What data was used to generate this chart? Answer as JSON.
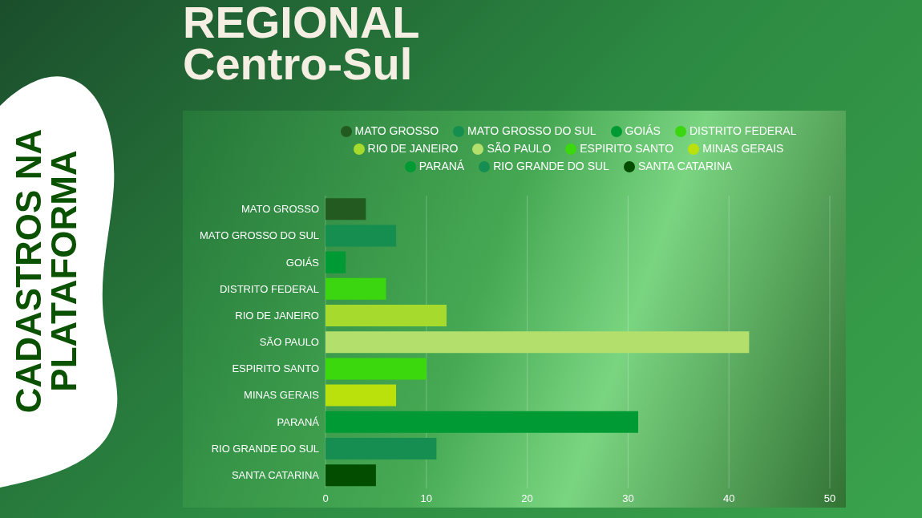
{
  "chart_data": {
    "type": "bar",
    "orientation": "horizontal",
    "stacked": true,
    "title": "REGIONAL\nCentro-Sul",
    "subtitle": "CADASTROS NA PLATAFORMA",
    "categories": [
      "MATO GROSSO",
      "MATO GROSSO DO SUL",
      "GOIÁS",
      "DISTRITO FEDERAL",
      "RIO DE JANEIRO",
      "SÃO PAULO",
      "ESPIRITO SANTO",
      "MINAS GERAIS",
      "PARANÁ",
      "RIO GRANDE DO SUL",
      "SANTA CATARINA"
    ],
    "series": [
      {
        "name": "MATO GROSSO",
        "color": "#225a20",
        "values": [
          4,
          null,
          null,
          null,
          null,
          null,
          null,
          null,
          null,
          null,
          null
        ]
      },
      {
        "name": "MATO GROSSO DO SUL",
        "color": "#168e50",
        "values": [
          null,
          7,
          null,
          null,
          null,
          null,
          null,
          null,
          null,
          null,
          null
        ]
      },
      {
        "name": "GOIÁS",
        "color": "#009a34",
        "values": [
          null,
          null,
          2,
          null,
          null,
          null,
          null,
          null,
          null,
          null,
          null
        ]
      },
      {
        "name": "DISTRITO FEDERAL",
        "color": "#3bd60f",
        "values": [
          null,
          null,
          null,
          6,
          null,
          null,
          null,
          null,
          null,
          null,
          null
        ]
      },
      {
        "name": "RIO DE JANEIRO",
        "color": "#a6da2d",
        "values": [
          null,
          null,
          null,
          null,
          12,
          null,
          null,
          null,
          null,
          null,
          null
        ]
      },
      {
        "name": "SÃO PAULO",
        "color": "#b3df6c",
        "values": [
          null,
          null,
          null,
          null,
          null,
          42,
          null,
          null,
          null,
          null,
          null
        ]
      },
      {
        "name": "ESPIRITO SANTO",
        "color": "#3ad80c",
        "values": [
          null,
          null,
          null,
          null,
          null,
          null,
          10,
          null,
          null,
          null,
          null
        ]
      },
      {
        "name": "MINAS GERAIS",
        "color": "#bbe10c",
        "values": [
          null,
          null,
          null,
          null,
          null,
          null,
          null,
          7,
          null,
          null,
          null
        ]
      },
      {
        "name": "PARANÁ",
        "color": "#009a35",
        "values": [
          null,
          null,
          null,
          null,
          null,
          null,
          null,
          null,
          31,
          null,
          null
        ]
      },
      {
        "name": "RIO GRANDE DO SUL",
        "color": "#168e51",
        "values": [
          null,
          null,
          null,
          null,
          null,
          null,
          null,
          null,
          null,
          11,
          null
        ]
      },
      {
        "name": "SANTA CATARINA",
        "color": "#024d00",
        "values": [
          null,
          null,
          null,
          null,
          null,
          null,
          null,
          null,
          null,
          null,
          5
        ]
      }
    ],
    "xlim": [
      0,
      50
    ],
    "xticks": [
      0,
      10,
      20,
      30,
      40,
      50
    ],
    "grid": "x",
    "legend": "top"
  }
}
